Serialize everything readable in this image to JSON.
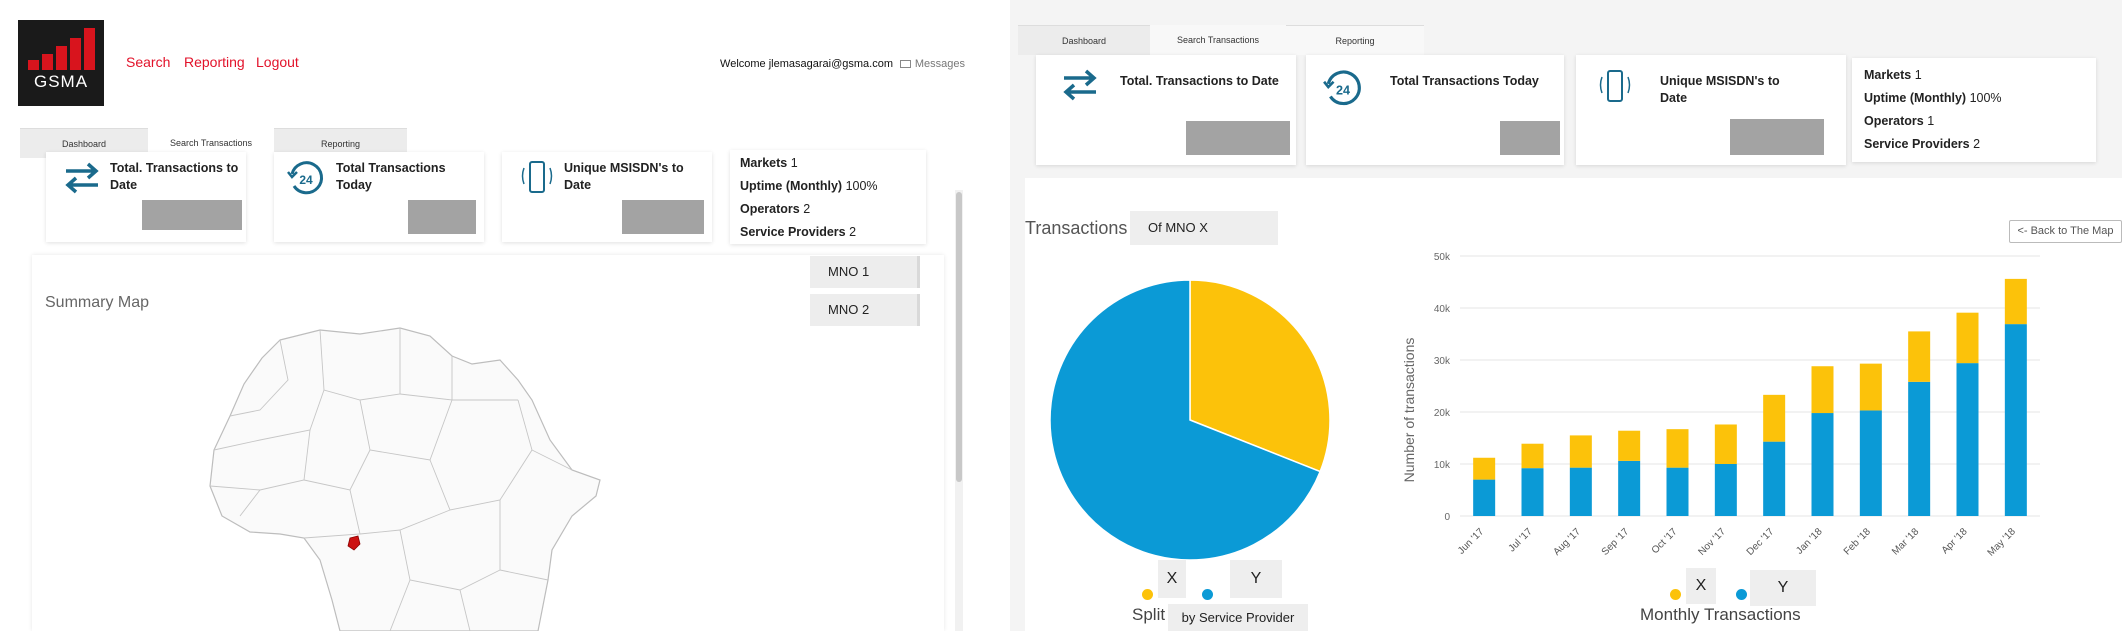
{
  "left": {
    "logo_text": "GSMA",
    "nav": {
      "search": "Search",
      "reporting": "Reporting",
      "logout": "Logout"
    },
    "welcome": "Welcome jlemasagarai@gsma.com",
    "messages": "Messages",
    "tabs": [
      {
        "label": "Dashboard",
        "active": false
      },
      {
        "label": "Search Transactions",
        "active": true
      },
      {
        "label": "Reporting",
        "active": false
      }
    ],
    "stats": {
      "total_to_date": "Total. Transactions to Date",
      "total_today": "Total Transactions Today",
      "unique_msisdn": "Unique MSISDN's to Date",
      "today_icon_number": "24"
    },
    "info": {
      "markets_label": "Markets",
      "markets_value": "1",
      "uptime_label": "Uptime (Monthly)",
      "uptime_value": "100%",
      "operators_label": "Operators",
      "operators_value": "2",
      "providers_label": "Service Providers",
      "providers_value": "2"
    },
    "summary_title": "Summary Map",
    "mno_buttons": [
      "MNO 1",
      "MNO 2"
    ],
    "colors": {
      "brand_red": "#e2122a",
      "map_highlight": "#cc1111"
    }
  },
  "right": {
    "tabs": [
      {
        "label": "Dashboard",
        "active": false
      },
      {
        "label": "Search Transactions",
        "active": true
      },
      {
        "label": "Reporting",
        "active": false
      }
    ],
    "stats": {
      "total_to_date": "Total. Transactions to Date",
      "total_today": "Total Transactions Today",
      "unique_msisdn": "Unique MSISDN's to Date",
      "today_icon_number": "24"
    },
    "info": {
      "markets_label": "Markets",
      "markets_value": "1",
      "uptime_label": "Uptime (Monthly)",
      "uptime_value": "100%",
      "operators_label": "Operators",
      "operators_value": "1",
      "providers_label": "Service Providers",
      "providers_value": "2"
    },
    "transactions_label": "Transactions",
    "filter_value": "Of MNO X",
    "back_button": "<- Back to The Map",
    "pie_caption": "Split",
    "pie_caption_box": "by Service Provider",
    "bar_caption": "Monthly Transactions",
    "legend": {
      "x": "X",
      "y": "Y"
    },
    "colors": {
      "x": "#fcc20a",
      "y": "#0b9ad6"
    }
  },
  "chart_data": [
    {
      "type": "pie",
      "title": "Split by Service Provider",
      "categories": [
        "X",
        "Y"
      ],
      "values": [
        31,
        69
      ]
    },
    {
      "type": "bar",
      "stacked": true,
      "title": "Monthly Transactions",
      "ylabel": "Number of transactions",
      "xlabel": "",
      "ylim": [
        0,
        50000
      ],
      "yticks": [
        "0",
        "10k",
        "20k",
        "30k",
        "40k",
        "50k"
      ],
      "ytick_values": [
        0,
        10000,
        20000,
        30000,
        40000,
        50000
      ],
      "categories": [
        "Jun '17",
        "Jul '17",
        "Aug '17",
        "Sep '17",
        "Oct '17",
        "Nov '17",
        "Dec '17",
        "Jan '18",
        "Feb '18",
        "Mar '18",
        "Apr '18",
        "May '18"
      ],
      "series": [
        {
          "name": "Y",
          "values": [
            7000,
            9200,
            9300,
            10600,
            9300,
            10000,
            14300,
            19800,
            20300,
            25800,
            29400,
            36900
          ]
        },
        {
          "name": "X",
          "values": [
            4200,
            4700,
            6200,
            5800,
            7400,
            7600,
            9000,
            9000,
            9000,
            9700,
            9700,
            8700
          ]
        }
      ]
    }
  ]
}
